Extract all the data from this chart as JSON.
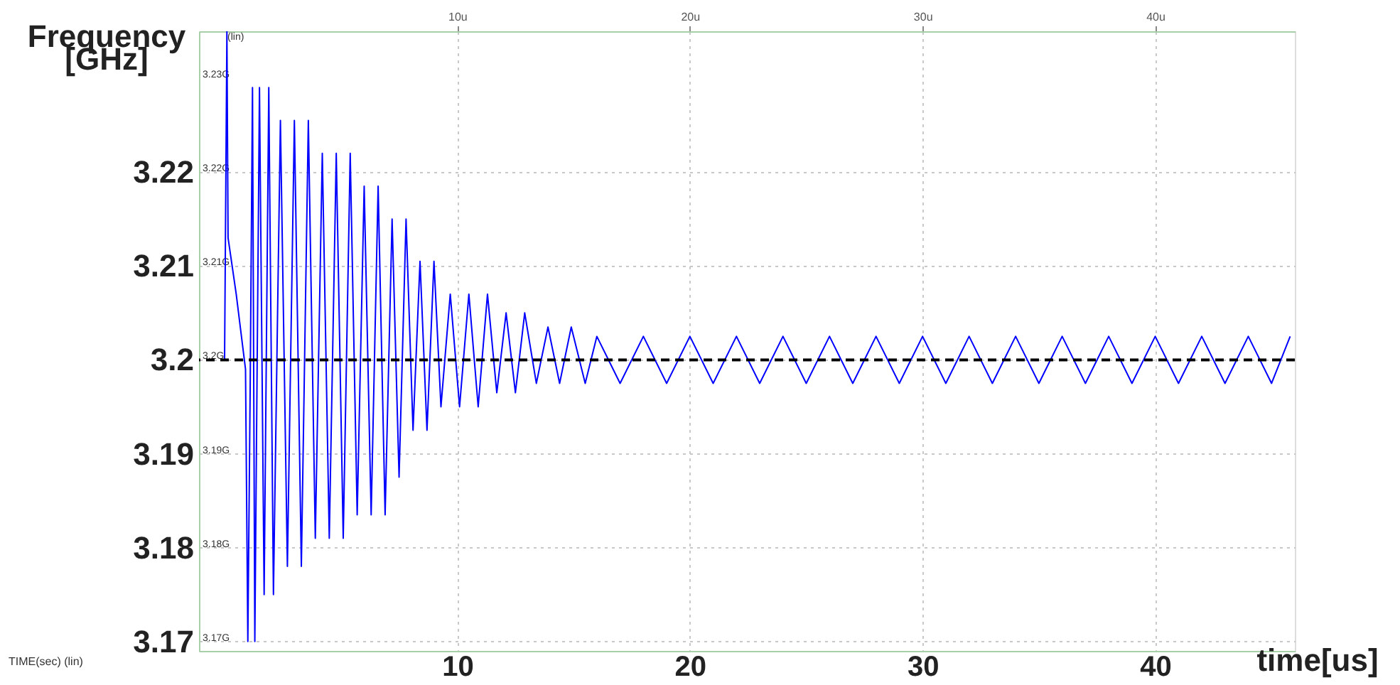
{
  "chart_data": {
    "type": "line",
    "ylabel": "Frequency [GHz]",
    "xlabel": "time[us]",
    "annotations": [
      "TIME(sec) (lin)",
      "(lin)"
    ],
    "xlim": [
      -1.1,
      46
    ],
    "xticks": [
      10,
      20,
      30,
      40
    ],
    "x2lim": [
      -1.1,
      46
    ],
    "x2ticks": [
      {
        "value": 10,
        "label": "10u"
      },
      {
        "value": 20,
        "label": "20u"
      },
      {
        "value": 30,
        "label": "30u"
      },
      {
        "value": 40,
        "label": "40u"
      }
    ],
    "ylim": [
      3.169,
      3.235
    ],
    "yticks": [
      3.17,
      3.18,
      3.19,
      3.2,
      3.21,
      3.22
    ],
    "y2lim": [
      3.169,
      3.235
    ],
    "y2ticks": [
      {
        "value": 3.17,
        "label": "3.17G"
      },
      {
        "value": 3.18,
        "label": "3.18G"
      },
      {
        "value": 3.19,
        "label": "3.19G"
      },
      {
        "value": 3.2,
        "label": "3.2G"
      },
      {
        "value": 3.21,
        "label": "3.21G"
      },
      {
        "value": 3.22,
        "label": "3.22G"
      },
      {
        "value": 3.23,
        "label": "3.23G"
      }
    ],
    "grid": true,
    "marker": "none",
    "line_style": "solid",
    "ref_lines": [
      {
        "axis": "y",
        "value": 3.2,
        "color": "#000000",
        "line_style": "dashed"
      }
    ],
    "series": [
      {
        "color": "#0000ff",
        "x": [
          0,
          0.1,
          0.15,
          0.5,
          0.9,
          1.0,
          1.1,
          1.2,
          1.3,
          1.5,
          1.7,
          1.9,
          2.1,
          2.4,
          2.7,
          3.0,
          3.3,
          3.6,
          3.9,
          4.2,
          4.5,
          4.8,
          5.1,
          5.4,
          5.7,
          6.0,
          6.3,
          6.6,
          6.9,
          7.2,
          7.5,
          7.8,
          8.1,
          8.4,
          8.7,
          9.0,
          9.3,
          9.7,
          10.1,
          10.5,
          10.9,
          11.3,
          11.7,
          12.1,
          12.5,
          12.9,
          13.4,
          13.9,
          14.4,
          14.9,
          15.5,
          16,
          17,
          18,
          19,
          20,
          21,
          22,
          23,
          24,
          25,
          26,
          27,
          28,
          29,
          30,
          31,
          32,
          33,
          34,
          35,
          36,
          37,
          38,
          39,
          40,
          41,
          42,
          43,
          44,
          45,
          45.8
        ],
        "values": [
          3.2,
          3.235,
          3.213,
          3.207,
          3.199,
          3.17,
          3.197,
          3.229,
          3.17,
          3.229,
          3.175,
          3.229,
          3.175,
          3.2255,
          3.178,
          3.2255,
          3.178,
          3.2255,
          3.181,
          3.222,
          3.181,
          3.222,
          3.181,
          3.222,
          3.1835,
          3.2185,
          3.1835,
          3.2185,
          3.1835,
          3.215,
          3.1875,
          3.215,
          3.1925,
          3.2105,
          3.1925,
          3.2105,
          3.195,
          3.207,
          3.195,
          3.207,
          3.195,
          3.207,
          3.1965,
          3.205,
          3.1965,
          3.205,
          3.1975,
          3.2035,
          3.1975,
          3.2035,
          3.1975,
          3.2025,
          3.1975,
          3.2025,
          3.1975,
          3.2025,
          3.1975,
          3.2025,
          3.1975,
          3.2025,
          3.1975,
          3.2025,
          3.1975,
          3.2025,
          3.1975,
          3.2025,
          3.1975,
          3.2025,
          3.1975,
          3.2025,
          3.1975,
          3.2025,
          3.1975,
          3.2025,
          3.1975,
          3.2025,
          3.1975,
          3.2025,
          3.1975,
          3.2025,
          3.1975,
          3.2025
        ]
      }
    ]
  }
}
